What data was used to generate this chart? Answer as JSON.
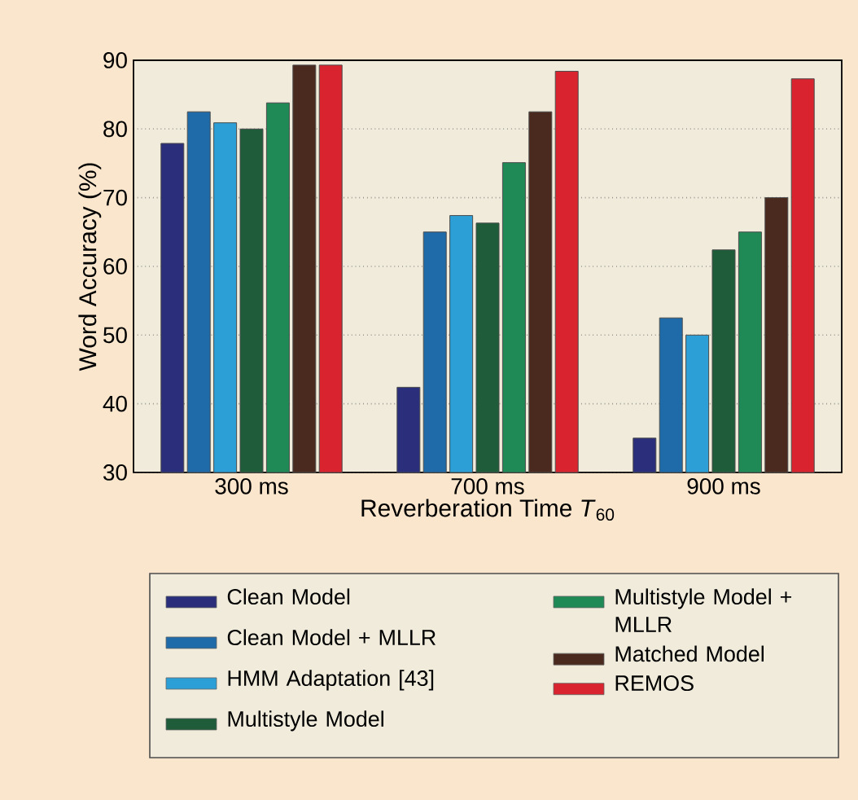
{
  "chart_data": {
    "type": "bar",
    "xlabel": "Reverberation Time *T*$_{60}$",
    "ylabel": "Word Accuracy (%)",
    "categories": [
      "300 ms",
      "700 ms",
      "900 ms"
    ],
    "series": [
      {
        "name": "Clean Model",
        "color": "#2b2e7a",
        "values": [
          77.9,
          42.4,
          35
        ]
      },
      {
        "name": "Clean Model + MLLR",
        "color": "#1f6aa8",
        "values": [
          82.5,
          65,
          52.5
        ]
      },
      {
        "name": "HMM Adaptation [43]",
        "color": "#2c9fd6",
        "values": [
          80.9,
          67.4,
          50
        ]
      },
      {
        "name": "Multistyle Model",
        "color": "#1e5c3a",
        "values": [
          80,
          66.3,
          62.4
        ]
      },
      {
        "name": "Multistyle Model + MLLR",
        "color": "#1f8a55",
        "values": [
          83.8,
          75.1,
          65
        ]
      },
      {
        "name": "Matched Model",
        "color": "#4a2a1e",
        "values": [
          89.3,
          82.5,
          70
        ]
      },
      {
        "name": "REMOS",
        "color": "#d9242f",
        "values": [
          89.3,
          88.4,
          87.3
        ]
      }
    ],
    "ylim": [
      30,
      90
    ],
    "yticks": [
      30,
      40,
      50,
      60,
      70,
      80,
      90
    ],
    "grid": "y",
    "legend": "bottom"
  }
}
